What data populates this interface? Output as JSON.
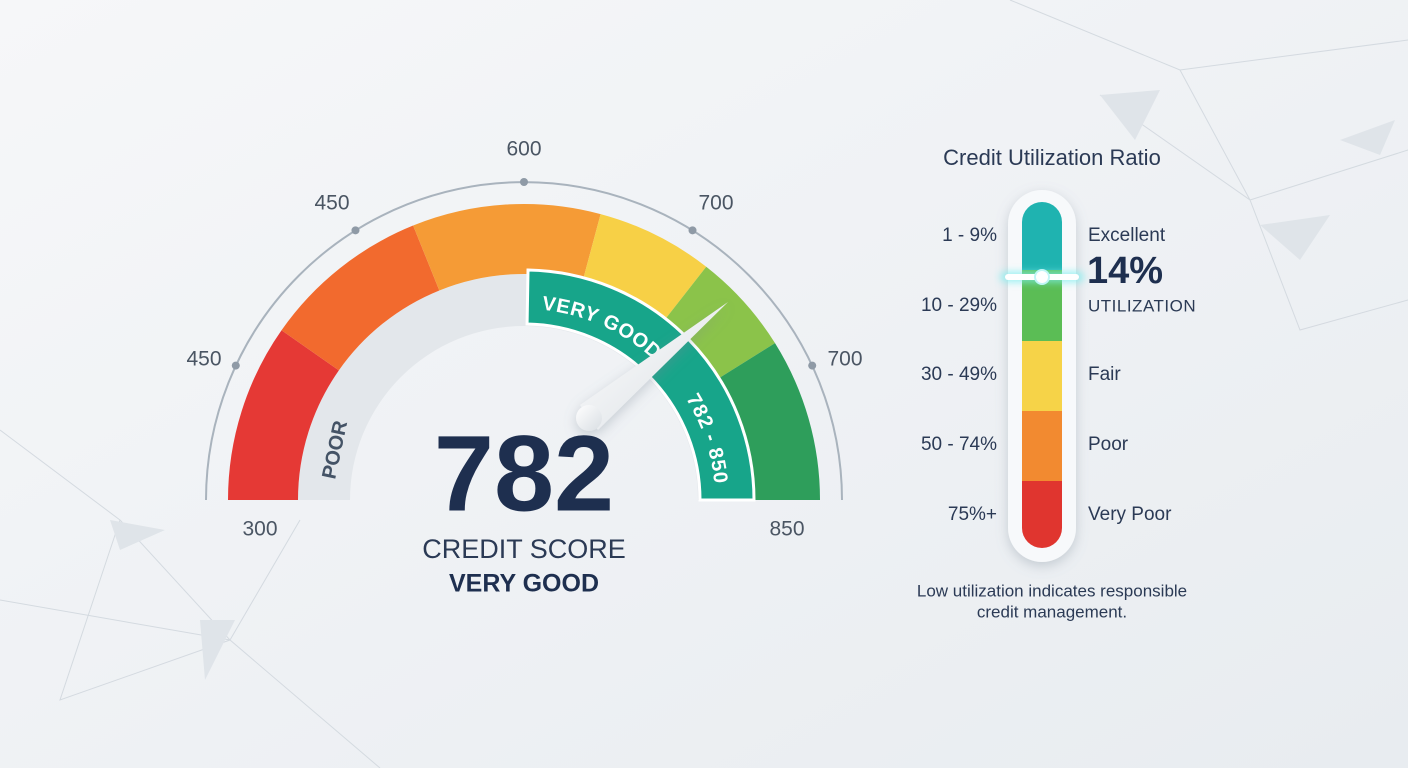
{
  "gauge": {
    "ticks": {
      "start": 300,
      "left": 450,
      "upper_left": 450,
      "top": 600,
      "upper_right": 700,
      "right": 700,
      "end": 850
    },
    "poor_label": "POOR",
    "band_label": "VERY GOOD",
    "band_range": "782 - 850",
    "score": 782,
    "score_caption": "CREDIT SCORE",
    "rating": "VERY GOOD"
  },
  "utilization": {
    "title": "Credit Utilization Ratio",
    "rows": [
      {
        "range": "1 - 9%",
        "label": "Excellent"
      },
      {
        "range": "10 - 29%"
      },
      {
        "range": "30 - 49%",
        "label": "Fair"
      },
      {
        "range": "50 - 74%",
        "label": "Poor"
      },
      {
        "range": "75%+",
        "label": "Very Poor"
      }
    ],
    "current": {
      "value": "14%",
      "caption": "UTILIZATION"
    },
    "note": [
      "Low utilization indicates responsible",
      "credit management."
    ]
  }
}
